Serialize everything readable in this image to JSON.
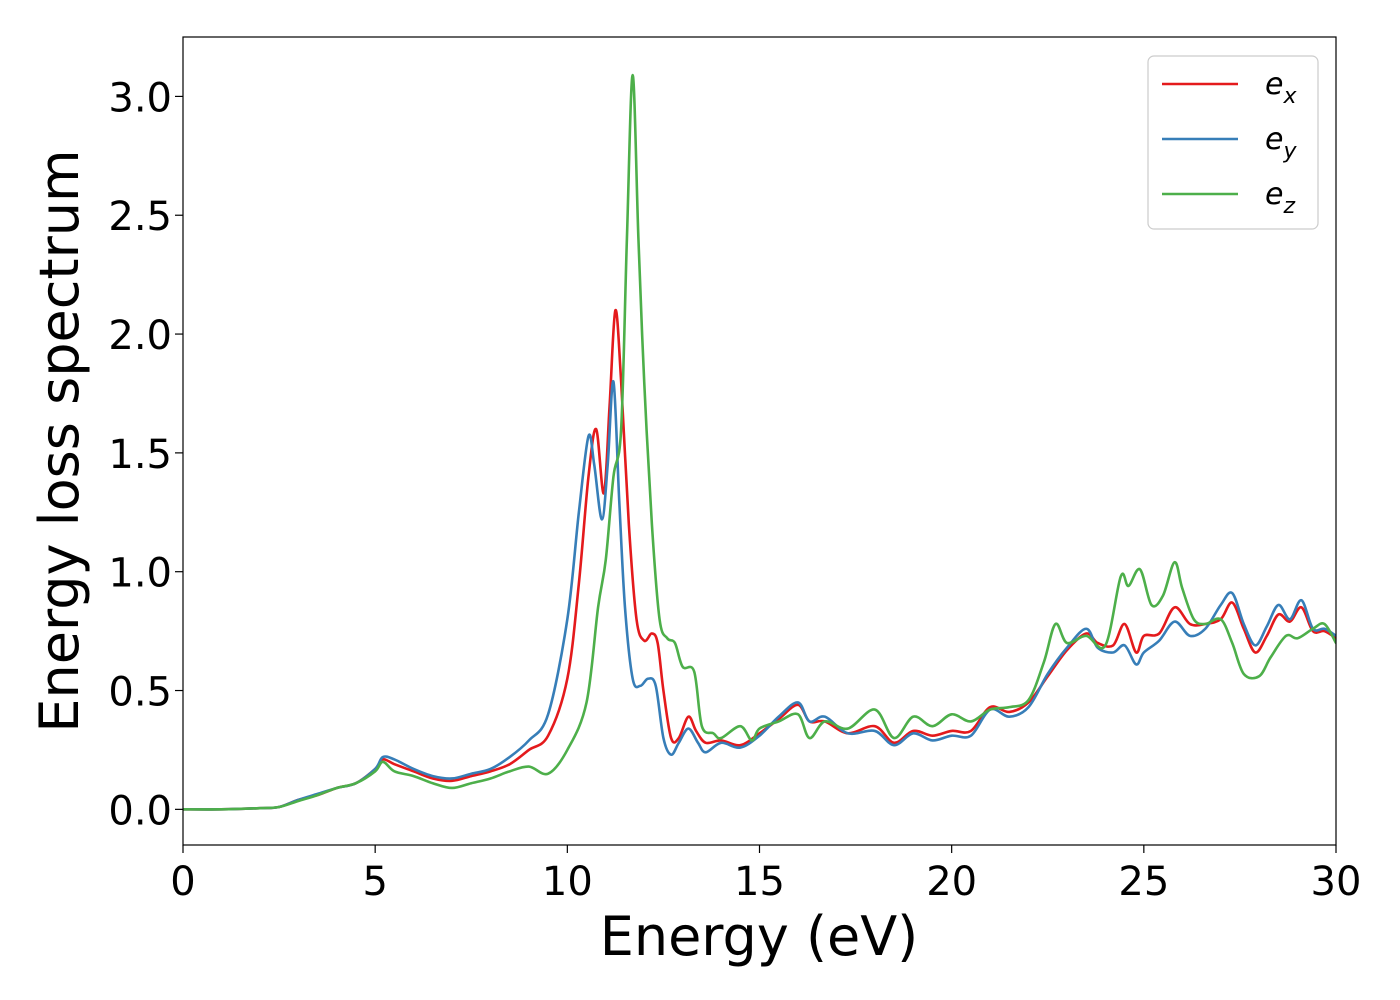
{
  "chart_data": {
    "type": "line",
    "title": "",
    "xlabel": "Energy (eV)",
    "ylabel": "Energy loss spectrum",
    "xlim": [
      0,
      30
    ],
    "ylim": [
      -0.15,
      3.25
    ],
    "xticks": [
      0,
      5,
      10,
      15,
      20,
      25,
      30
    ],
    "yticks": [
      0.0,
      0.5,
      1.0,
      1.5,
      2.0,
      2.5,
      3.0
    ],
    "xtick_labels": [
      "0",
      "5",
      "10",
      "15",
      "20",
      "25",
      "30"
    ],
    "ytick_labels": [
      "0.0",
      "0.5",
      "1.0",
      "1.5",
      "2.0",
      "2.5",
      "3.0"
    ],
    "grid": false,
    "legend": "top-right",
    "series": [
      {
        "name": "e_x",
        "label_base": "e",
        "label_sub": "x",
        "color": "#e41a1c",
        "points": [
          [
            0,
            0
          ],
          [
            1,
            0
          ],
          [
            2,
            0.005
          ],
          [
            2.5,
            0.01
          ],
          [
            3,
            0.04
          ],
          [
            3.5,
            0.06
          ],
          [
            4,
            0.09
          ],
          [
            4.5,
            0.11
          ],
          [
            5,
            0.17
          ],
          [
            5.2,
            0.21
          ],
          [
            5.5,
            0.19
          ],
          [
            6,
            0.16
          ],
          [
            6.5,
            0.13
          ],
          [
            7,
            0.12
          ],
          [
            7.5,
            0.14
          ],
          [
            8,
            0.16
          ],
          [
            8.5,
            0.19
          ],
          [
            9,
            0.25
          ],
          [
            9.5,
            0.31
          ],
          [
            10,
            0.55
          ],
          [
            10.3,
            0.95
          ],
          [
            10.55,
            1.4
          ],
          [
            10.75,
            1.6
          ],
          [
            10.95,
            1.33
          ],
          [
            11.1,
            1.7
          ],
          [
            11.25,
            2.1
          ],
          [
            11.4,
            1.8
          ],
          [
            11.6,
            1.2
          ],
          [
            11.8,
            0.8
          ],
          [
            12,
            0.71
          ],
          [
            12.2,
            0.74
          ],
          [
            12.35,
            0.7
          ],
          [
            12.5,
            0.5
          ],
          [
            12.7,
            0.3
          ],
          [
            12.9,
            0.3
          ],
          [
            13.15,
            0.39
          ],
          [
            13.35,
            0.33
          ],
          [
            13.6,
            0.28
          ],
          [
            14,
            0.29
          ],
          [
            14.5,
            0.27
          ],
          [
            15,
            0.32
          ],
          [
            15.5,
            0.38
          ],
          [
            16,
            0.44
          ],
          [
            16.3,
            0.37
          ],
          [
            16.7,
            0.37
          ],
          [
            17.3,
            0.32
          ],
          [
            18,
            0.35
          ],
          [
            18.5,
            0.28
          ],
          [
            19,
            0.33
          ],
          [
            19.5,
            0.31
          ],
          [
            20,
            0.33
          ],
          [
            20.5,
            0.33
          ],
          [
            21,
            0.43
          ],
          [
            21.5,
            0.41
          ],
          [
            22,
            0.45
          ],
          [
            22.5,
            0.56
          ],
          [
            23,
            0.67
          ],
          [
            23.5,
            0.74
          ],
          [
            23.8,
            0.7
          ],
          [
            24.2,
            0.69
          ],
          [
            24.5,
            0.78
          ],
          [
            24.8,
            0.66
          ],
          [
            25,
            0.73
          ],
          [
            25.4,
            0.74
          ],
          [
            25.8,
            0.85
          ],
          [
            26.2,
            0.78
          ],
          [
            26.6,
            0.78
          ],
          [
            27,
            0.8
          ],
          [
            27.3,
            0.87
          ],
          [
            27.6,
            0.76
          ],
          [
            27.9,
            0.66
          ],
          [
            28.2,
            0.73
          ],
          [
            28.5,
            0.82
          ],
          [
            28.8,
            0.79
          ],
          [
            29.1,
            0.85
          ],
          [
            29.4,
            0.75
          ],
          [
            29.7,
            0.75
          ],
          [
            30,
            0.72
          ]
        ]
      },
      {
        "name": "e_y",
        "label_base": "e",
        "label_sub": "y",
        "color": "#377eb8",
        "points": [
          [
            0,
            0
          ],
          [
            1,
            0
          ],
          [
            2,
            0.005
          ],
          [
            2.5,
            0.01
          ],
          [
            3,
            0.04
          ],
          [
            3.5,
            0.065
          ],
          [
            4,
            0.09
          ],
          [
            4.5,
            0.11
          ],
          [
            5,
            0.17
          ],
          [
            5.2,
            0.22
          ],
          [
            5.5,
            0.21
          ],
          [
            6,
            0.17
          ],
          [
            6.5,
            0.14
          ],
          [
            7,
            0.13
          ],
          [
            7.5,
            0.15
          ],
          [
            8,
            0.17
          ],
          [
            8.5,
            0.22
          ],
          [
            9,
            0.29
          ],
          [
            9.5,
            0.4
          ],
          [
            10,
            0.8
          ],
          [
            10.3,
            1.25
          ],
          [
            10.55,
            1.57
          ],
          [
            10.7,
            1.45
          ],
          [
            10.9,
            1.22
          ],
          [
            11.05,
            1.45
          ],
          [
            11.2,
            1.8
          ],
          [
            11.35,
            1.3
          ],
          [
            11.5,
            0.85
          ],
          [
            11.7,
            0.55
          ],
          [
            11.9,
            0.52
          ],
          [
            12.1,
            0.55
          ],
          [
            12.3,
            0.52
          ],
          [
            12.5,
            0.3
          ],
          [
            12.7,
            0.23
          ],
          [
            12.9,
            0.28
          ],
          [
            13.15,
            0.34
          ],
          [
            13.4,
            0.28
          ],
          [
            13.6,
            0.24
          ],
          [
            14,
            0.28
          ],
          [
            14.5,
            0.26
          ],
          [
            15,
            0.31
          ],
          [
            15.5,
            0.39
          ],
          [
            16,
            0.45
          ],
          [
            16.3,
            0.37
          ],
          [
            16.7,
            0.39
          ],
          [
            17.3,
            0.32
          ],
          [
            18,
            0.33
          ],
          [
            18.5,
            0.27
          ],
          [
            19,
            0.32
          ],
          [
            19.5,
            0.29
          ],
          [
            20,
            0.31
          ],
          [
            20.5,
            0.31
          ],
          [
            21,
            0.42
          ],
          [
            21.5,
            0.39
          ],
          [
            22,
            0.43
          ],
          [
            22.5,
            0.57
          ],
          [
            23,
            0.68
          ],
          [
            23.5,
            0.76
          ],
          [
            23.8,
            0.68
          ],
          [
            24.2,
            0.66
          ],
          [
            24.5,
            0.69
          ],
          [
            24.8,
            0.61
          ],
          [
            25,
            0.66
          ],
          [
            25.4,
            0.71
          ],
          [
            25.8,
            0.79
          ],
          [
            26.2,
            0.73
          ],
          [
            26.6,
            0.76
          ],
          [
            27,
            0.86
          ],
          [
            27.3,
            0.91
          ],
          [
            27.6,
            0.78
          ],
          [
            27.9,
            0.69
          ],
          [
            28.2,
            0.77
          ],
          [
            28.5,
            0.86
          ],
          [
            28.8,
            0.8
          ],
          [
            29.1,
            0.88
          ],
          [
            29.4,
            0.76
          ],
          [
            29.7,
            0.76
          ],
          [
            30,
            0.73
          ]
        ]
      },
      {
        "name": "e_z",
        "label_base": "e",
        "label_sub": "z",
        "color": "#4daf4a",
        "points": [
          [
            0,
            0
          ],
          [
            1,
            0
          ],
          [
            2,
            0.005
          ],
          [
            2.5,
            0.01
          ],
          [
            3,
            0.035
          ],
          [
            3.5,
            0.06
          ],
          [
            4,
            0.09
          ],
          [
            4.5,
            0.11
          ],
          [
            5,
            0.16
          ],
          [
            5.2,
            0.2
          ],
          [
            5.5,
            0.16
          ],
          [
            6,
            0.14
          ],
          [
            6.5,
            0.11
          ],
          [
            7,
            0.09
          ],
          [
            7.5,
            0.11
          ],
          [
            8,
            0.13
          ],
          [
            8.5,
            0.16
          ],
          [
            9,
            0.18
          ],
          [
            9.5,
            0.15
          ],
          [
            10,
            0.25
          ],
          [
            10.5,
            0.45
          ],
          [
            10.8,
            0.85
          ],
          [
            11,
            1.05
          ],
          [
            11.2,
            1.4
          ],
          [
            11.4,
            1.6
          ],
          [
            11.55,
            2.4
          ],
          [
            11.7,
            3.09
          ],
          [
            11.85,
            2.4
          ],
          [
            12,
            1.8
          ],
          [
            12.2,
            1.2
          ],
          [
            12.4,
            0.8
          ],
          [
            12.6,
            0.72
          ],
          [
            12.8,
            0.7
          ],
          [
            13,
            0.6
          ],
          [
            13.3,
            0.58
          ],
          [
            13.5,
            0.35
          ],
          [
            13.8,
            0.32
          ],
          [
            14,
            0.3
          ],
          [
            14.5,
            0.35
          ],
          [
            14.8,
            0.29
          ],
          [
            15,
            0.34
          ],
          [
            15.5,
            0.37
          ],
          [
            16,
            0.4
          ],
          [
            16.3,
            0.3
          ],
          [
            16.7,
            0.37
          ],
          [
            17.3,
            0.34
          ],
          [
            18,
            0.42
          ],
          [
            18.5,
            0.3
          ],
          [
            19,
            0.39
          ],
          [
            19.5,
            0.35
          ],
          [
            20,
            0.4
          ],
          [
            20.5,
            0.37
          ],
          [
            21,
            0.42
          ],
          [
            21.5,
            0.43
          ],
          [
            22,
            0.46
          ],
          [
            22.4,
            0.62
          ],
          [
            22.7,
            0.78
          ],
          [
            23,
            0.7
          ],
          [
            23.5,
            0.73
          ],
          [
            24,
            0.69
          ],
          [
            24.4,
            0.98
          ],
          [
            24.6,
            0.94
          ],
          [
            24.9,
            1.01
          ],
          [
            25.2,
            0.86
          ],
          [
            25.5,
            0.9
          ],
          [
            25.8,
            1.04
          ],
          [
            26,
            0.93
          ],
          [
            26.3,
            0.8
          ],
          [
            26.6,
            0.78
          ],
          [
            27,
            0.8
          ],
          [
            27.3,
            0.7
          ],
          [
            27.6,
            0.57
          ],
          [
            28,
            0.56
          ],
          [
            28.3,
            0.64
          ],
          [
            28.7,
            0.73
          ],
          [
            29,
            0.72
          ],
          [
            29.4,
            0.76
          ],
          [
            29.7,
            0.78
          ],
          [
            30,
            0.7
          ]
        ]
      }
    ]
  }
}
